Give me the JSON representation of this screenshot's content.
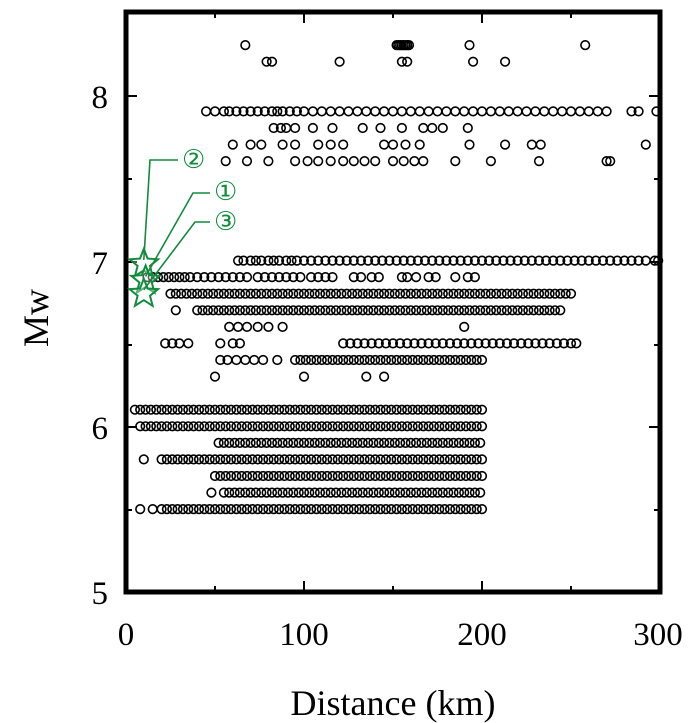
{
  "chart_data": {
    "type": "scatter",
    "xlabel": "Distance (km)",
    "ylabel": "Mw",
    "xlim": [
      0,
      300
    ],
    "ylim": [
      5,
      8.5
    ],
    "xticks": [
      "0",
      "100",
      "200",
      "300"
    ],
    "yticks": [
      "5",
      "6",
      "7",
      "8"
    ],
    "grid": false,
    "marker": "open-circle",
    "colors": {
      "points": "#000000",
      "highlight": "#118c3c"
    },
    "highlighted_events": [
      {
        "label": "②",
        "x": 10,
        "y": 6.98
      },
      {
        "label": "①",
        "x": 11,
        "y": 6.88
      },
      {
        "label": "③",
        "x": 10,
        "y": 6.8
      }
    ],
    "point_bands": [
      {
        "y": 8.3,
        "x": [
          67,
          152,
          153,
          154,
          155,
          156,
          157,
          158,
          159,
          193,
          258
        ]
      },
      {
        "y": 8.2,
        "x": [
          79,
          82,
          120,
          155,
          158,
          195,
          213
        ]
      },
      {
        "y": 7.9,
        "x": [
          45,
          50,
          55,
          58,
          62,
          66,
          70,
          74,
          78,
          82,
          85,
          88,
          92,
          96,
          100,
          105,
          110,
          115,
          120,
          125,
          130,
          135,
          140,
          145,
          150,
          155,
          160,
          165,
          170,
          175,
          180,
          185,
          190,
          195,
          200,
          205,
          210,
          215,
          220,
          225,
          230,
          235,
          240,
          245,
          250,
          255,
          260,
          265,
          270,
          284,
          288,
          298
        ]
      },
      {
        "y": 7.8,
        "x": [
          83,
          87,
          90,
          95,
          105,
          116,
          133,
          143,
          155,
          167,
          172,
          178,
          192
        ]
      },
      {
        "y": 7.7,
        "x": [
          60,
          70,
          76,
          88,
          95,
          108,
          115,
          122,
          145,
          150,
          157,
          165,
          193,
          213,
          228,
          233,
          292
        ]
      },
      {
        "y": 7.6,
        "x": [
          56,
          68,
          80,
          95,
          102,
          108,
          115,
          122,
          128,
          134,
          140,
          150,
          156,
          162,
          167,
          185,
          205,
          232,
          270,
          272
        ]
      },
      {
        "y": 7.0,
        "x": [
          63,
          66,
          70,
          73,
          76,
          80,
          83,
          86,
          90,
          93,
          96,
          100,
          104,
          108,
          112,
          116,
          120,
          124,
          128,
          132,
          136,
          140,
          144,
          148,
          152,
          156,
          160,
          164,
          168,
          172,
          176,
          180,
          184,
          188,
          192,
          196,
          200,
          204,
          208,
          212,
          216,
          220,
          224,
          228,
          232,
          236,
          240,
          244,
          248,
          252,
          256,
          260,
          264,
          268,
          272,
          276,
          280,
          284,
          288,
          292,
          297,
          299
        ]
      },
      {
        "y": 6.9,
        "x": [
          12,
          15,
          18,
          21,
          24,
          27,
          30,
          33,
          36,
          40,
          44,
          48,
          52,
          56,
          60,
          64,
          68,
          74,
          78,
          82,
          86,
          90,
          94,
          98,
          104,
          108,
          112,
          116,
          128,
          132,
          138,
          142,
          155,
          158,
          163,
          170,
          174,
          185,
          192,
          196
        ]
      },
      {
        "y": 6.8,
        "x": [
          25,
          28,
          31,
          34,
          37,
          40,
          43,
          46,
          49,
          52,
          55,
          58,
          61,
          64,
          67,
          70,
          73,
          76,
          79,
          82,
          85,
          88,
          91,
          94,
          97,
          100,
          103,
          106,
          109,
          112,
          115,
          118,
          121,
          124,
          127,
          130,
          133,
          136,
          139,
          142,
          145,
          148,
          151,
          154,
          157,
          160,
          163,
          166,
          169,
          172,
          175,
          178,
          181,
          184,
          187,
          190,
          193,
          196,
          199,
          202,
          205,
          208,
          211,
          214,
          217,
          220,
          223,
          226,
          229,
          232,
          235,
          238,
          241,
          244,
          247,
          250
        ]
      },
      {
        "y": 6.7,
        "x": [
          28,
          40,
          43,
          46,
          49,
          52,
          55,
          58,
          61,
          64,
          67,
          70,
          73,
          76,
          79,
          82,
          85,
          88,
          91,
          94,
          97,
          100,
          103,
          106,
          109,
          112,
          115,
          118,
          121,
          124,
          127,
          130,
          133,
          136,
          139,
          142,
          145,
          148,
          151,
          154,
          157,
          160,
          163,
          166,
          169,
          172,
          175,
          178,
          181,
          184,
          187,
          190,
          193,
          196,
          199,
          202,
          205,
          208,
          211,
          214,
          217,
          220,
          223,
          226,
          229,
          232,
          235,
          238,
          241,
          244
        ]
      },
      {
        "y": 6.6,
        "x": [
          58,
          63,
          68,
          74,
          80,
          88,
          190
        ]
      },
      {
        "y": 6.5,
        "x": [
          22,
          26,
          30,
          35,
          53,
          60,
          64,
          122,
          126,
          130,
          134,
          138,
          142,
          146,
          150,
          154,
          158,
          162,
          166,
          170,
          174,
          178,
          182,
          186,
          190,
          194,
          198,
          202,
          206,
          210,
          214,
          218,
          222,
          226,
          230,
          234,
          238,
          242,
          246,
          250,
          253
        ]
      },
      {
        "y": 6.4,
        "x": [
          53,
          57,
          62,
          67,
          72,
          77,
          85,
          95,
          98,
          101,
          104,
          107,
          110,
          113,
          116,
          119,
          122,
          125,
          128,
          131,
          134,
          137,
          140,
          143,
          146,
          149,
          152,
          155,
          158,
          161,
          164,
          167,
          170,
          173,
          176,
          179,
          182,
          185,
          188,
          191,
          194,
          197,
          200
        ]
      },
      {
        "y": 6.3,
        "x": [
          50,
          100,
          135,
          145
        ]
      },
      {
        "y": 6.1,
        "x": [
          5,
          8,
          11,
          14,
          17,
          20,
          23,
          26,
          29,
          32,
          35,
          38,
          41,
          44,
          47,
          50,
          53,
          56,
          59,
          62,
          65,
          68,
          71,
          74,
          77,
          80,
          83,
          86,
          89,
          92,
          95,
          98,
          101,
          104,
          107,
          110,
          113,
          116,
          119,
          122,
          125,
          128,
          131,
          134,
          137,
          140,
          143,
          146,
          149,
          152,
          155,
          158,
          161,
          164,
          167,
          170,
          173,
          176,
          179,
          182,
          185,
          188,
          191,
          194,
          197,
          200
        ]
      },
      {
        "y": 6.0,
        "x": [
          8,
          11,
          14,
          17,
          20,
          23,
          26,
          29,
          32,
          35,
          38,
          41,
          44,
          47,
          50,
          53,
          56,
          59,
          62,
          65,
          68,
          71,
          74,
          77,
          80,
          83,
          86,
          89,
          92,
          95,
          98,
          101,
          104,
          107,
          110,
          113,
          116,
          119,
          122,
          125,
          128,
          131,
          134,
          137,
          140,
          143,
          146,
          149,
          152,
          155,
          158,
          161,
          164,
          167,
          170,
          173,
          176,
          179,
          182,
          185,
          188,
          191,
          194,
          197,
          200
        ]
      },
      {
        "y": 5.9,
        "x": [
          52,
          55,
          58,
          61,
          64,
          67,
          70,
          73,
          76,
          79,
          82,
          85,
          88,
          91,
          94,
          97,
          100,
          103,
          106,
          109,
          112,
          115,
          118,
          121,
          124,
          127,
          130,
          133,
          136,
          139,
          142,
          145,
          148,
          151,
          154,
          157,
          160,
          163,
          166,
          169,
          172,
          175,
          178,
          181,
          184,
          187,
          190,
          193,
          196,
          199
        ]
      },
      {
        "y": 5.8,
        "x": [
          10,
          20,
          23,
          26,
          29,
          32,
          35,
          38,
          41,
          44,
          47,
          50,
          53,
          56,
          59,
          62,
          65,
          68,
          71,
          74,
          77,
          80,
          83,
          86,
          89,
          92,
          95,
          98,
          101,
          104,
          107,
          110,
          113,
          116,
          119,
          122,
          125,
          128,
          131,
          134,
          137,
          140,
          143,
          146,
          149,
          152,
          155,
          158,
          161,
          164,
          167,
          170,
          173,
          176,
          179,
          182,
          185,
          188,
          191,
          194,
          197,
          200
        ]
      },
      {
        "y": 5.7,
        "x": [
          50,
          53,
          56,
          59,
          62,
          65,
          68,
          71,
          74,
          77,
          80,
          83,
          86,
          89,
          92,
          95,
          98,
          101,
          104,
          107,
          110,
          113,
          116,
          119,
          122,
          125,
          128,
          131,
          134,
          137,
          140,
          143,
          146,
          149,
          152,
          155,
          158,
          161,
          164,
          167,
          170,
          173,
          176,
          179,
          182,
          185,
          188,
          191,
          194,
          197,
          200
        ]
      },
      {
        "y": 5.6,
        "x": [
          48,
          55,
          58,
          61,
          64,
          67,
          70,
          73,
          76,
          79,
          82,
          85,
          88,
          91,
          94,
          97,
          100,
          103,
          106,
          109,
          112,
          115,
          118,
          121,
          124,
          127,
          130,
          133,
          136,
          139,
          142,
          145,
          148,
          151,
          154,
          157,
          160,
          163,
          166,
          169,
          172,
          175,
          178,
          181,
          184,
          187,
          190,
          193,
          196,
          199
        ]
      },
      {
        "y": 5.5,
        "x": [
          8,
          15,
          20,
          23,
          26,
          29,
          32,
          35,
          38,
          41,
          44,
          47,
          50,
          53,
          56,
          59,
          62,
          65,
          68,
          71,
          74,
          77,
          80,
          83,
          86,
          89,
          92,
          95,
          98,
          101,
          104,
          107,
          110,
          113,
          116,
          119,
          122,
          125,
          128,
          131,
          134,
          137,
          140,
          143,
          146,
          149,
          152,
          155,
          158,
          161,
          164,
          167,
          170,
          173,
          176,
          179,
          182,
          185,
          188,
          191,
          194,
          197,
          200
        ]
      }
    ]
  }
}
